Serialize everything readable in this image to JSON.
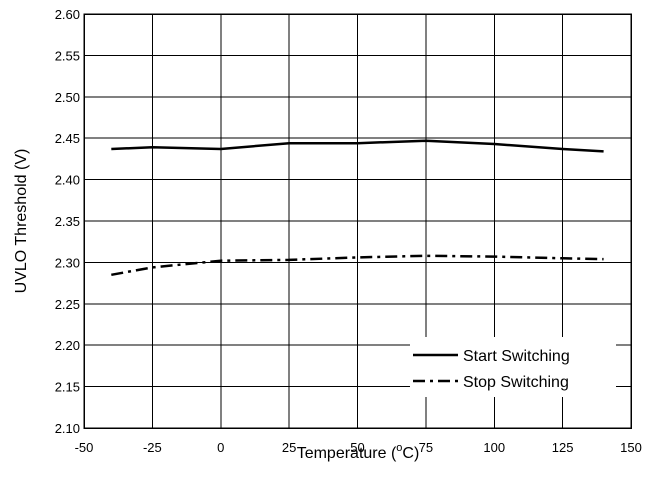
{
  "chart_data": {
    "type": "line",
    "title": "",
    "xlabel": "Temperature (°C)",
    "xlabel_main": "Temperature (",
    "xlabel_degree": "o",
    "xlabel_unit": "C)",
    "ylabel": "UVLO Threshold (V)",
    "xlim": [
      -50,
      150
    ],
    "ylim": [
      2.1,
      2.6
    ],
    "x_ticks": [
      "-50",
      "-25",
      "0",
      "25",
      "50",
      "75",
      "100",
      "125",
      "150"
    ],
    "y_ticks": [
      "2.10",
      "2.15",
      "2.20",
      "2.25",
      "2.30",
      "2.35",
      "2.40",
      "2.45",
      "2.50",
      "2.55",
      "2.60"
    ],
    "grid": true,
    "legend_position": "bottom-right",
    "series": [
      {
        "name": "Start Switching",
        "line_style": "solid",
        "color": "#000000",
        "x": [
          -40,
          -25,
          0,
          25,
          50,
          75,
          100,
          125,
          140
        ],
        "y": [
          2.437,
          2.439,
          2.437,
          2.444,
          2.444,
          2.447,
          2.443,
          2.437,
          2.434
        ]
      },
      {
        "name": "Stop Switching",
        "line_style": "dash-dot",
        "color": "#000000",
        "x": [
          -40,
          -25,
          0,
          25,
          50,
          75,
          100,
          125,
          140
        ],
        "y": [
          2.285,
          2.294,
          2.302,
          2.303,
          2.306,
          2.308,
          2.307,
          2.305,
          2.304
        ]
      }
    ]
  }
}
